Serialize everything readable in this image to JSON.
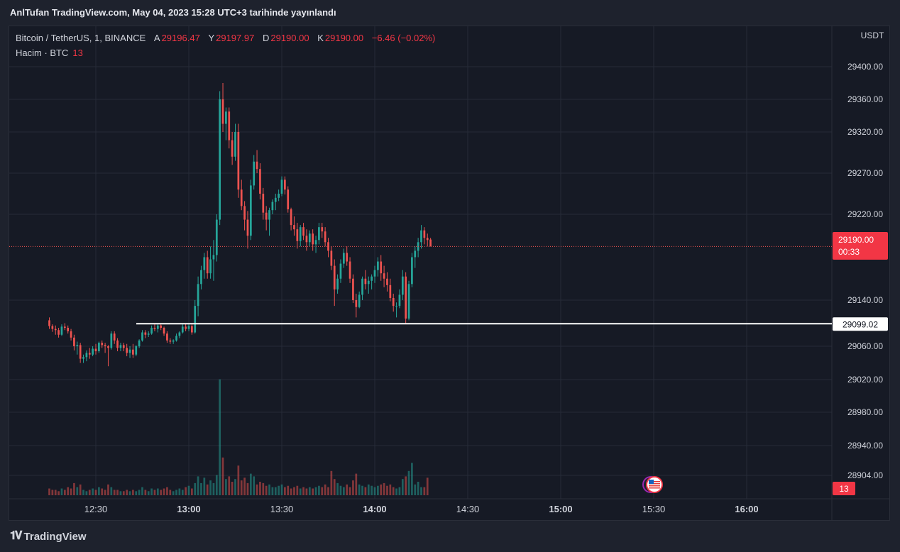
{
  "header": {
    "published": "AnlTufan TradingView.com, May 04, 2023 15:28 UTC+3 tarihinde yayınlandı"
  },
  "legend": {
    "symbol": "Bitcoin / TetherUS, 1, BINANCE",
    "open_label": "A",
    "open": "29196.47",
    "high_label": "Y",
    "high": "29197.97",
    "low_label": "D",
    "low": "29190.00",
    "close_label": "K",
    "close": "29190.00",
    "change": "−6.46 (−0.02%)",
    "volume_label": "Hacim · BTC",
    "volume_value": "13"
  },
  "price_axis": {
    "currency": "USDT",
    "current_price": "29190.00",
    "countdown": "00:33",
    "line_label": "29099.02",
    "volume_badge": "13"
  },
  "footer": {
    "brand": "TradingView"
  },
  "colors": {
    "up": "#26a69a",
    "down": "#ef5350",
    "bg": "#161a25",
    "grid": "#262b38",
    "hline": "#ffffff"
  },
  "chart_data": {
    "type": "candlestick",
    "interval_minutes": 1,
    "x_ticks": [
      "12:30",
      "13:00",
      "13:30",
      "14:00",
      "14:30",
      "15:00",
      "15:30",
      "16:00"
    ],
    "y_ticks": [
      29400,
      29360,
      29320,
      29270,
      29220,
      29140,
      29060,
      29020,
      28980,
      28940,
      28904
    ],
    "y_tick_labels": [
      "29400.00",
      "29360.00",
      "29320.00",
      "29270.00",
      "29220.00",
      "29140.00",
      "29060.00",
      "29020.00",
      "28980.00",
      "28940.00",
      "28904.00"
    ],
    "horizontal_line": 29099.02,
    "last_price": 29190.0,
    "start_time": "12:15",
    "candles": [
      [
        29105,
        29110,
        29090,
        29095
      ],
      [
        29095,
        29098,
        29085,
        29090
      ],
      [
        29090,
        29096,
        29080,
        29088
      ],
      [
        29088,
        29092,
        29075,
        29080
      ],
      [
        29080,
        29098,
        29078,
        29094
      ],
      [
        29094,
        29100,
        29088,
        29092
      ],
      [
        29092,
        29096,
        29082,
        29086
      ],
      [
        29086,
        29090,
        29070,
        29075
      ],
      [
        29075,
        29080,
        29055,
        29060
      ],
      [
        29060,
        29068,
        29050,
        29062
      ],
      [
        29062,
        29066,
        29040,
        29045
      ],
      [
        29045,
        29050,
        29040,
        29047
      ],
      [
        29047,
        29055,
        29042,
        29052
      ],
      [
        29052,
        29058,
        29045,
        29050
      ],
      [
        29050,
        29060,
        29048,
        29057
      ],
      [
        29057,
        29064,
        29050,
        29054
      ],
      [
        29054,
        29068,
        29052,
        29066
      ],
      [
        29066,
        29070,
        29058,
        29062
      ],
      [
        29062,
        29066,
        29052,
        29060
      ],
      [
        29060,
        29062,
        29036,
        29058
      ],
      [
        29058,
        29086,
        29056,
        29082
      ],
      [
        29082,
        29086,
        29064,
        29070
      ],
      [
        29070,
        29074,
        29054,
        29058
      ],
      [
        29058,
        29066,
        29054,
        29062
      ],
      [
        29062,
        29066,
        29054,
        29058
      ],
      [
        29058,
        29064,
        29048,
        29052
      ],
      [
        29052,
        29060,
        29046,
        29056
      ],
      [
        29056,
        29064,
        29046,
        29050
      ],
      [
        29050,
        29062,
        29048,
        29060
      ],
      [
        29060,
        29072,
        29058,
        29070
      ],
      [
        29070,
        29088,
        29068,
        29084
      ],
      [
        29084,
        29088,
        29074,
        29080
      ],
      [
        29080,
        29086,
        29076,
        29082
      ],
      [
        29082,
        29096,
        29080,
        29092
      ],
      [
        29092,
        29098,
        29086,
        29090
      ],
      [
        29090,
        29100,
        29084,
        29096
      ],
      [
        29096,
        29098,
        29088,
        29092
      ],
      [
        29092,
        29094,
        29078,
        29082
      ],
      [
        29082,
        29086,
        29066,
        29070
      ],
      [
        29070,
        29074,
        29064,
        29068
      ],
      [
        29068,
        29072,
        29064,
        29070
      ],
      [
        29070,
        29082,
        29068,
        29078
      ],
      [
        29078,
        29086,
        29074,
        29084
      ],
      [
        29084,
        29098,
        29082,
        29094
      ],
      [
        29094,
        29100,
        29086,
        29090
      ],
      [
        29090,
        29098,
        29086,
        29095
      ],
      [
        29095,
        29098,
        29080,
        29084
      ],
      [
        29084,
        29140,
        29082,
        29130
      ],
      [
        29130,
        29162,
        29112,
        29155
      ],
      [
        29155,
        29172,
        29150,
        29168
      ],
      [
        29168,
        29184,
        29160,
        29180
      ],
      [
        29180,
        29186,
        29160,
        29165
      ],
      [
        29165,
        29190,
        29160,
        29178
      ],
      [
        29178,
        29196,
        29158,
        29182
      ],
      [
        29182,
        29220,
        29176,
        29215
      ],
      [
        29215,
        29370,
        29210,
        29360
      ],
      [
        29360,
        29380,
        29320,
        29330
      ],
      [
        29330,
        29350,
        29310,
        29345
      ],
      [
        29345,
        29350,
        29300,
        29310
      ],
      [
        29310,
        29320,
        29280,
        29290
      ],
      [
        29290,
        29330,
        29285,
        29320
      ],
      [
        29320,
        29330,
        29240,
        29250
      ],
      [
        29250,
        29262,
        29225,
        29230
      ],
      [
        29230,
        29236,
        29205,
        29215
      ],
      [
        29215,
        29224,
        29188,
        29200
      ],
      [
        29200,
        29262,
        29196,
        29255
      ],
      [
        29255,
        29292,
        29250,
        29284
      ],
      [
        29284,
        29298,
        29270,
        29275
      ],
      [
        29275,
        29282,
        29238,
        29245
      ],
      [
        29245,
        29252,
        29215,
        29222
      ],
      [
        29222,
        29230,
        29205,
        29215
      ],
      [
        29215,
        29228,
        29200,
        29225
      ],
      [
        29225,
        29238,
        29220,
        29235
      ],
      [
        29235,
        29245,
        29225,
        29240
      ],
      [
        29240,
        29250,
        29236,
        29245
      ],
      [
        29245,
        29266,
        29242,
        29262
      ],
      [
        29262,
        29266,
        29244,
        29250
      ],
      [
        29250,
        29254,
        29222,
        29226
      ],
      [
        29226,
        29228,
        29205,
        29210
      ],
      [
        29210,
        29218,
        29200,
        29206
      ],
      [
        29206,
        29212,
        29188,
        29195
      ],
      [
        29195,
        29210,
        29190,
        29208
      ],
      [
        29208,
        29212,
        29196,
        29200
      ],
      [
        29200,
        29206,
        29186,
        29194
      ],
      [
        29194,
        29205,
        29190,
        29202
      ],
      [
        29202,
        29206,
        29186,
        29192
      ],
      [
        29192,
        29200,
        29184,
        29196
      ],
      [
        29196,
        29212,
        29192,
        29208
      ],
      [
        29208,
        29212,
        29198,
        29204
      ],
      [
        29204,
        29208,
        29190,
        29194
      ],
      [
        29194,
        29198,
        29180,
        29186
      ],
      [
        29186,
        29190,
        29168,
        29172
      ],
      [
        29172,
        29178,
        29130,
        29150
      ],
      [
        29150,
        29164,
        29146,
        29160
      ],
      [
        29160,
        29178,
        29156,
        29174
      ],
      [
        29174,
        29188,
        29170,
        29184
      ],
      [
        29184,
        29190,
        29172,
        29176
      ],
      [
        29176,
        29180,
        29156,
        29160
      ],
      [
        29160,
        29164,
        29135,
        29140
      ],
      [
        29140,
        29146,
        29110,
        29128
      ],
      [
        29128,
        29148,
        29126,
        29145
      ],
      [
        29145,
        29162,
        29140,
        29160
      ],
      [
        29160,
        29168,
        29150,
        29155
      ],
      [
        29155,
        29162,
        29146,
        29158
      ],
      [
        29158,
        29164,
        29150,
        29162
      ],
      [
        29162,
        29172,
        29156,
        29168
      ],
      [
        29168,
        29180,
        29162,
        29176
      ],
      [
        29176,
        29182,
        29158,
        29165
      ],
      [
        29165,
        29172,
        29152,
        29160
      ],
      [
        29160,
        29166,
        29148,
        29154
      ],
      [
        29154,
        29160,
        29138,
        29142
      ],
      [
        29142,
        29146,
        29120,
        29130
      ],
      [
        29130,
        29136,
        29110,
        29130
      ],
      [
        29130,
        29150,
        29126,
        29145
      ],
      [
        29145,
        29168,
        29140,
        29162
      ],
      [
        29162,
        29166,
        29100,
        29108
      ],
      [
        29108,
        29158,
        29105,
        29155
      ],
      [
        29155,
        29184,
        29152,
        29180
      ],
      [
        29180,
        29190,
        29170,
        29186
      ],
      [
        29186,
        29198,
        29180,
        29194
      ],
      [
        29194,
        29210,
        29188,
        29205
      ],
      [
        29205,
        29208,
        29192,
        29198
      ],
      [
        29198,
        29202,
        29190,
        29196
      ],
      [
        29196.47,
        29197.97,
        29190,
        29190
      ]
    ],
    "volumes": [
      5,
      4,
      4,
      3,
      5,
      4,
      6,
      5,
      9,
      6,
      8,
      4,
      3,
      4,
      5,
      4,
      6,
      5,
      4,
      8,
      6,
      4,
      4,
      3,
      3,
      4,
      3,
      4,
      3,
      4,
      6,
      4,
      3,
      5,
      4,
      5,
      4,
      5,
      6,
      4,
      3,
      4,
      5,
      4,
      6,
      7,
      5,
      9,
      14,
      9,
      13,
      8,
      11,
      9,
      15,
      86,
      28,
      12,
      14,
      10,
      12,
      22,
      11,
      13,
      9,
      16,
      14,
      8,
      10,
      9,
      7,
      8,
      6,
      6,
      7,
      8,
      6,
      7,
      5,
      6,
      7,
      5,
      6,
      5,
      6,
      5,
      6,
      7,
      6,
      8,
      6,
      18,
      12,
      9,
      7,
      6,
      8,
      6,
      11,
      16,
      8,
      7,
      6,
      8,
      7,
      6,
      7,
      8,
      9,
      7,
      8,
      6,
      5,
      6,
      12,
      14,
      18,
      24,
      8,
      10,
      6,
      6,
      13
    ]
  }
}
